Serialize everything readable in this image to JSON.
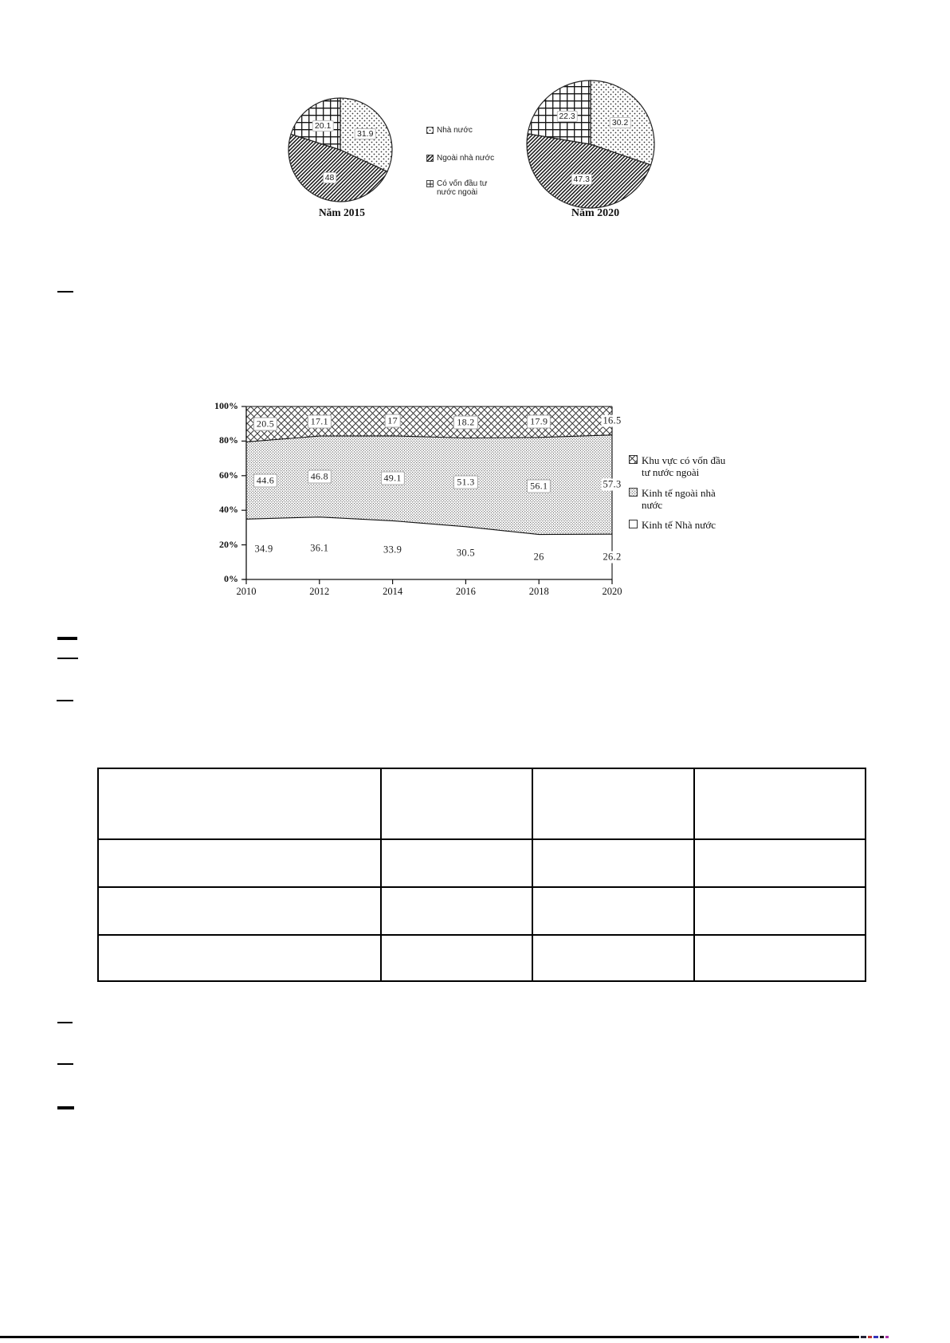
{
  "figure_pies": {
    "caption_2015": "Năm 2015",
    "caption_2020": "Năm 2020",
    "legend": [
      {
        "label": "Nhà nước"
      },
      {
        "label": "Ngoài nhà nước"
      },
      {
        "label_line1": "Có vốn đầu tư",
        "label_line2": "nước ngoài"
      }
    ]
  },
  "figure_area": {
    "y_axis_labels": [
      "0%",
      "20%",
      "40%",
      "60%",
      "80%",
      "100%"
    ],
    "x_axis_labels": [
      "2010",
      "2012",
      "2014",
      "2016",
      "2018",
      "2020"
    ],
    "legend": [
      {
        "line1": "Khu vực có vốn đầu",
        "line2": "tư nước ngoài"
      },
      {
        "line1": "Kinh tế ngoài nhà",
        "line2": "nước"
      },
      {
        "line1": "Kinh tế Nhà nước",
        "line2": ""
      }
    ]
  },
  "chart_data": [
    {
      "type": "pie",
      "title": "Năm 2015",
      "labels": [
        "Nhà nước",
        "Ngoài nhà nước",
        "Có vốn đầu tư nước ngoài"
      ],
      "values": [
        31.9,
        48,
        20.1
      ],
      "patterns": [
        "dots",
        "diagonal",
        "grid"
      ]
    },
    {
      "type": "pie",
      "title": "Năm 2020",
      "labels": [
        "Nhà nước",
        "Ngoài nhà nước",
        "Có vốn đầu tư nước ngoài"
      ],
      "values": [
        30.2,
        47.3,
        22.3
      ],
      "patterns": [
        "dots",
        "diagonal",
        "grid"
      ]
    },
    {
      "type": "area",
      "stacked": "percent",
      "x": [
        2010,
        2012,
        2014,
        2016,
        2018,
        2020
      ],
      "series": [
        {
          "name": "Kinh tế Nhà nước",
          "values": [
            34.9,
            36.1,
            33.9,
            30.5,
            26,
            26.2
          ],
          "pattern": "plain"
        },
        {
          "name": "Kinh tế ngoài nhà nước",
          "values": [
            44.6,
            46.8,
            49.1,
            51.3,
            56.1,
            57.3
          ],
          "pattern": "dots"
        },
        {
          "name": "Khu vực có vốn đầu tư nước ngoài",
          "values": [
            20.5,
            17.1,
            17,
            18.2,
            17.9,
            16.5
          ],
          "pattern": "crosshatch"
        }
      ],
      "ylim": [
        0,
        100
      ],
      "y_tick_labels": [
        "0%",
        "20%",
        "40%",
        "60%",
        "80%",
        "100%"
      ],
      "legend_position": "right",
      "grid": false
    }
  ],
  "table": {
    "rows": 4,
    "cols": 4
  }
}
